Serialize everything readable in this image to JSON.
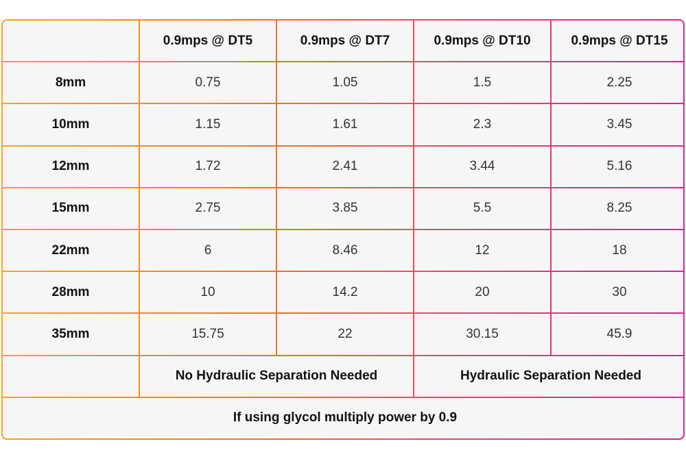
{
  "table": {
    "headers": [
      "",
      "0.9mps @ DT5",
      "0.9mps @ DT7",
      "0.9mps @ DT10",
      "0.9mps @ DT15"
    ],
    "rows": [
      [
        "8mm",
        "0.75",
        "1.05",
        "1.5",
        "2.25"
      ],
      [
        "10mm",
        "1.15",
        "1.61",
        "2.3",
        "3.45"
      ],
      [
        "12mm",
        "1.72",
        "2.41",
        "3.44",
        "5.16"
      ],
      [
        "15mm",
        "2.75",
        "3.85",
        "5.5",
        "8.25"
      ],
      [
        "22mm",
        "6",
        "8.46",
        "12",
        "18"
      ],
      [
        "28mm",
        "10",
        "14.2",
        "20",
        "30"
      ],
      [
        "35mm",
        "15.75",
        "22",
        "30.15",
        "45.9"
      ]
    ],
    "separation_row": {
      "no_separation": "No Hydraulic Separation Needed",
      "separation": "Hydraulic Separation Needed"
    },
    "footer_note": "If using glycol multiply power by 0.9"
  },
  "colors": {
    "gradient_start": "#f5a51a",
    "gradient_mid": "#ef7a26",
    "gradient_pink": "#e6456a",
    "gradient_end": "#d9238f",
    "cell_background": "#f6f6f6"
  }
}
